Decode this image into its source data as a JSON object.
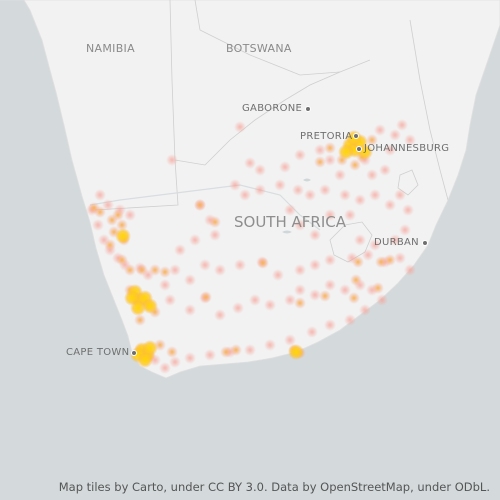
{
  "map": {
    "labels": {
      "namibia": "NAMIBIA",
      "botswana": "BOTSWANA",
      "south_africa": "SOUTH AFRICA",
      "gaborone": "GABORONE",
      "pretoria": "PRETORIA",
      "johannesburg": "JOHANNESBURG",
      "durban": "DURBAN",
      "cape_town": "CAPE TOWN"
    },
    "attribution": {
      "text": "Map tiles by Carto, under CC BY 3.0. Data by OpenStreetMap, under ODbL."
    },
    "colors": {
      "ocean": "#d4dadc",
      "land": "#f2f2f2",
      "border": "#cccccc",
      "heat_low": "#f7a399",
      "heat_mid": "#f8b24a",
      "heat_high": "#ffd700"
    }
  }
}
